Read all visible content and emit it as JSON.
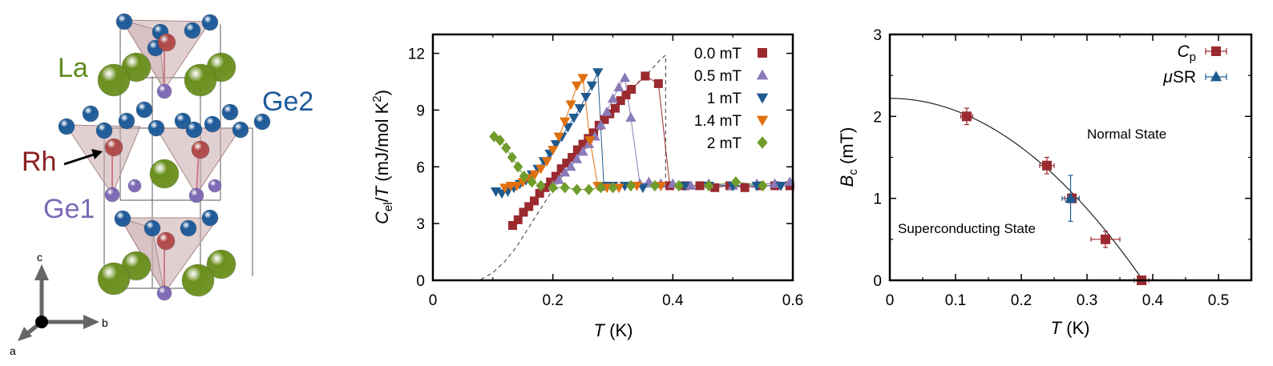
{
  "structure": {
    "labels": {
      "la": "La",
      "ge2": "Ge2",
      "rh": "Rh",
      "ge1": "Ge1"
    },
    "axes": {
      "c": "c",
      "b": "b",
      "a": "a"
    },
    "colors": {
      "la": "#6b8f1f",
      "ge": "#1d5a99",
      "rh": "#b04a4a",
      "ge1": "#7c68b4",
      "poly": "#c9a9ac"
    }
  },
  "chart_data": [
    {
      "type": "line",
      "xlabel": "T (K)",
      "ylabel": "Cel/T (mJ/mol K2)",
      "xlim": [
        0,
        0.6
      ],
      "ylim": [
        0,
        13
      ],
      "xticks": [
        "0",
        "0.2",
        "0.4",
        "0.6"
      ],
      "yticks": [
        "0",
        "3",
        "6",
        "9",
        "12"
      ],
      "legend_position": "top-right",
      "series": [
        {
          "name": "0.0 mT",
          "color": "#9b2a2f",
          "marker": "square",
          "x": [
            0.133,
            0.142,
            0.151,
            0.16,
            0.169,
            0.178,
            0.187,
            0.196,
            0.205,
            0.214,
            0.223,
            0.232,
            0.241,
            0.25,
            0.259,
            0.268,
            0.277,
            0.286,
            0.295,
            0.304,
            0.313,
            0.322,
            0.331,
            0.354,
            0.376,
            0.395,
            0.42,
            0.445,
            0.47,
            0.495,
            0.52,
            0.545,
            0.57,
            0.595
          ],
          "y": [
            2.9,
            3.2,
            3.6,
            3.9,
            4.2,
            4.6,
            4.9,
            5.2,
            5.5,
            5.9,
            6.2,
            6.5,
            6.9,
            7.2,
            7.5,
            7.8,
            8.2,
            8.5,
            8.8,
            9.1,
            9.5,
            9.8,
            10.1,
            10.8,
            10.4,
            5.0,
            5.0,
            5.0,
            4.9,
            5.0,
            4.9,
            5.0,
            5.0,
            5.0
          ]
        },
        {
          "name": "0.5 mT",
          "color": "#8a7ab8",
          "marker": "triangle-up",
          "x": [
            0.2,
            0.21,
            0.22,
            0.23,
            0.24,
            0.25,
            0.26,
            0.27,
            0.28,
            0.29,
            0.3,
            0.31,
            0.32,
            0.33,
            0.345,
            0.36,
            0.38,
            0.4,
            0.43,
            0.46,
            0.5,
            0.54,
            0.57,
            0.595
          ],
          "y": [
            5.0,
            5.3,
            5.7,
            6.0,
            6.4,
            6.8,
            7.2,
            7.6,
            8.2,
            8.9,
            9.6,
            10.2,
            10.7,
            8.6,
            5.1,
            5.2,
            5.1,
            5.1,
            5.0,
            5.1,
            5.0,
            5.1,
            5.1,
            5.2
          ]
        },
        {
          "name": "1 mT",
          "color": "#1f5a8f",
          "marker": "triangle-down",
          "x": [
            0.105,
            0.115,
            0.125,
            0.135,
            0.145,
            0.155,
            0.165,
            0.175,
            0.185,
            0.195,
            0.205,
            0.215,
            0.225,
            0.235,
            0.245,
            0.255,
            0.265,
            0.275,
            0.285,
            0.3,
            0.32,
            0.35,
            0.38,
            0.42,
            0.46,
            0.5,
            0.54,
            0.58
          ],
          "y": [
            4.7,
            4.6,
            4.7,
            4.9,
            5.1,
            5.3,
            5.6,
            5.9,
            6.3,
            6.7,
            7.2,
            7.6,
            8.1,
            8.6,
            9.1,
            9.7,
            10.3,
            11.0,
            5.0,
            5.0,
            5.0,
            4.9,
            5.0,
            5.0,
            5.0,
            5.0,
            5.0,
            5.0
          ]
        },
        {
          "name": "1.4 mT",
          "color": "#e0700f",
          "marker": "triangle-down",
          "x": [
            0.12,
            0.13,
            0.14,
            0.15,
            0.16,
            0.17,
            0.18,
            0.19,
            0.2,
            0.21,
            0.22,
            0.23,
            0.24,
            0.25,
            0.262,
            0.275,
            0.29,
            0.31,
            0.34,
            0.38
          ],
          "y": [
            4.9,
            5.0,
            5.0,
            5.2,
            5.4,
            5.6,
            5.9,
            6.3,
            6.9,
            7.6,
            8.4,
            9.3,
            10.3,
            10.7,
            7.4,
            5.0,
            4.9,
            4.9,
            5.0,
            5.0
          ]
        },
        {
          "name": "2 mT",
          "color": "#6f9c2a",
          "marker": "diamond",
          "x": [
            0.102,
            0.112,
            0.122,
            0.132,
            0.142,
            0.152,
            0.165,
            0.18,
            0.2,
            0.22,
            0.24,
            0.26,
            0.28,
            0.3,
            0.33,
            0.37,
            0.41,
            0.46,
            0.505,
            0.55
          ],
          "y": [
            7.6,
            7.4,
            7.0,
            6.5,
            6.0,
            5.5,
            5.2,
            5.0,
            4.9,
            4.9,
            4.8,
            4.8,
            4.9,
            4.9,
            5.0,
            5.0,
            5.0,
            5.0,
            5.2,
            5.0
          ]
        }
      ],
      "reference_curve": {
        "style": "dashed",
        "x": [
          0.08,
          0.1,
          0.12,
          0.14,
          0.16,
          0.18,
          0.2,
          0.22,
          0.24,
          0.26,
          0.28,
          0.3,
          0.32,
          0.34,
          0.36,
          0.38,
          0.388,
          0.388
        ],
        "y": [
          0.05,
          0.4,
          1.0,
          1.8,
          2.8,
          3.8,
          4.8,
          5.7,
          6.6,
          7.4,
          8.2,
          9.0,
          9.7,
          10.4,
          11.0,
          11.7,
          11.9,
          5.0
        ]
      }
    },
    {
      "type": "scatter",
      "xlabel": "T (K)",
      "ylabel": "Bc (mT)",
      "xlim": [
        0,
        0.55
      ],
      "ylim": [
        0,
        3
      ],
      "xticks": [
        "0",
        "0.1",
        "0.2",
        "0.3",
        "0.4",
        "0.5"
      ],
      "yticks": [
        "0",
        "1",
        "2",
        "3"
      ],
      "legend_position": "top-right",
      "annotations": [
        "Normal State",
        "Superconducting State"
      ],
      "series": [
        {
          "name": "Cp",
          "color": "#9b2a2f",
          "marker": "square",
          "x": [
            0.117,
            0.239,
            0.277,
            0.328,
            0.383
          ],
          "y": [
            2.0,
            1.4,
            1.0,
            0.5,
            0.0
          ],
          "xerr": [
            0.009,
            0.011,
            0.011,
            0.022,
            0.011
          ],
          "yerr": [
            0.1,
            0.1,
            0.05,
            0.1,
            0.05
          ]
        },
        {
          "name": "μSR",
          "color": "#1f5a8f",
          "marker": "triangle-up",
          "x": [
            0.275
          ],
          "y": [
            1.0
          ],
          "xerr": [
            0.013
          ],
          "yerr": [
            0.28
          ]
        }
      ],
      "fit_curve": {
        "style": "solid",
        "B0": 2.22,
        "Tc": 0.385
      }
    }
  ]
}
